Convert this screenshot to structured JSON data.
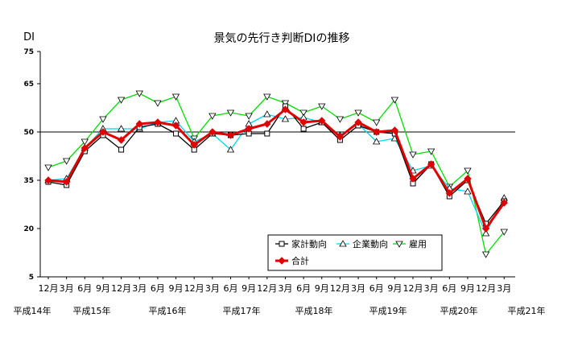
{
  "chart_data": {
    "type": "line",
    "title": "景気の先行き判断DIの推移",
    "ylabel": "DI",
    "ylim": [
      5,
      75
    ],
    "y_ticks": [
      5,
      20,
      35,
      50,
      65,
      75
    ],
    "reference_line": 50,
    "x_tick_labels": [
      "12月",
      "3月",
      "6月",
      "9月",
      "12月",
      "3月",
      "6月",
      "9月",
      "12月",
      "3月",
      "6月",
      "9月",
      "12月",
      "3月",
      "6月",
      "9月",
      "12月",
      "3月",
      "6月",
      "9月",
      "12月",
      "3月",
      "6月",
      "9月",
      "12月",
      "3月"
    ],
    "year_labels": [
      "平成14年",
      "平成15年",
      "平成16年",
      "平成17年",
      "平成18年",
      "平成19年",
      "平成20年",
      "平成21年"
    ],
    "legend_position": "bottom-right",
    "series": [
      {
        "name": "家計動向",
        "color": "#000000",
        "marker": "square",
        "values": [
          34.5,
          33.5,
          44.0,
          49.0,
          44.5,
          51.5,
          52.5,
          49.5,
          44.5,
          49.5,
          49.0,
          49.5,
          49.5,
          58.0,
          51.0,
          53.0,
          47.5,
          52.0,
          50.0,
          49.5,
          34.0,
          40.0,
          30.0,
          35.0,
          21.5,
          28.5
        ]
      },
      {
        "name": "企業動向",
        "color": "#00d8f0",
        "marker": "triangle-up",
        "values": [
          35.0,
          35.5,
          45.0,
          51.0,
          51.0,
          51.0,
          53.0,
          53.5,
          47.0,
          49.5,
          44.5,
          52.5,
          55.5,
          54.0,
          54.5,
          53.0,
          49.0,
          52.5,
          47.0,
          48.0,
          38.0,
          39.5,
          32.5,
          31.5,
          18.5,
          29.5
        ]
      },
      {
        "name": "雇用",
        "color": "#00e000",
        "marker": "triangle-down",
        "values": [
          39.0,
          41.0,
          47.0,
          54.0,
          60.0,
          62.0,
          59.0,
          61.0,
          48.0,
          55.0,
          56.0,
          55.0,
          61.0,
          59.0,
          56.0,
          58.0,
          54.0,
          56.0,
          53.0,
          60.0,
          43.0,
          44.0,
          33.0,
          38.0,
          12.0,
          19.0
        ]
      },
      {
        "name": "合計",
        "color": "#e00000",
        "marker": "diamond",
        "values": [
          35.0,
          34.5,
          45.0,
          50.0,
          47.5,
          52.5,
          53.0,
          52.0,
          46.0,
          50.0,
          49.0,
          51.0,
          52.5,
          57.0,
          53.0,
          53.5,
          48.5,
          53.0,
          50.0,
          50.5,
          35.5,
          40.0,
          31.0,
          35.5,
          20.0,
          28.0
        ]
      }
    ]
  }
}
